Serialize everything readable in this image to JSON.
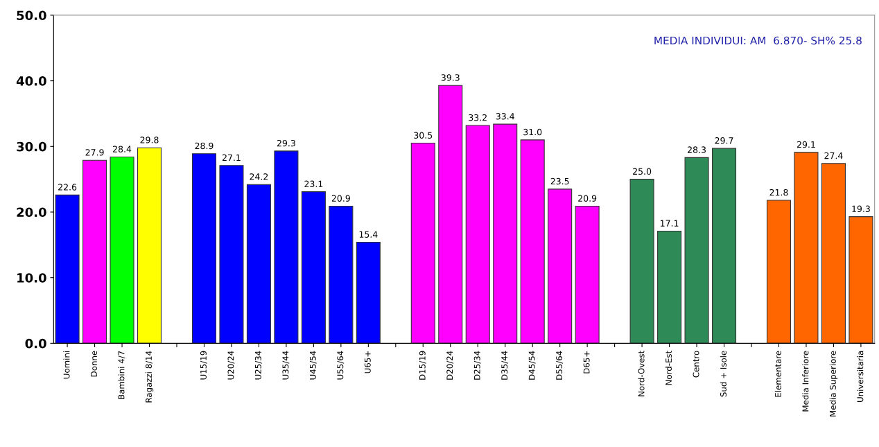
{
  "chart_data": {
    "type": "bar",
    "categories": [
      "Uomini",
      "Donne",
      "Bambini 4/7",
      "Ragazzi 8/14",
      null,
      "U15/19",
      "U20/24",
      "U25/34",
      "U35/44",
      "U45/54",
      "U55/64",
      "U65+",
      null,
      "D15/19",
      "D20/24",
      "D25/34",
      "D35/44",
      "D45/54",
      "D55/64",
      "D65+",
      null,
      "Nord-Ovest",
      "Nord-Est",
      "Centro",
      "Sud + Isole",
      null,
      "Elementare",
      "Media Inferiore",
      "Media Superiore",
      "Universitaria"
    ],
    "values": [
      22.6,
      27.9,
      28.4,
      29.8,
      null,
      28.9,
      27.1,
      24.2,
      29.3,
      23.1,
      20.9,
      15.4,
      null,
      30.5,
      39.3,
      33.2,
      33.4,
      31.0,
      23.5,
      20.9,
      null,
      25.0,
      17.1,
      28.3,
      29.7,
      null,
      21.8,
      29.1,
      27.4,
      19.3
    ],
    "colors": [
      "#0000ff",
      "#ff00ff",
      "#00ff00",
      "#ffff00",
      null,
      "#0000ff",
      "#0000ff",
      "#0000ff",
      "#0000ff",
      "#0000ff",
      "#0000ff",
      "#0000ff",
      null,
      "#ff00ff",
      "#ff00ff",
      "#ff00ff",
      "#ff00ff",
      "#ff00ff",
      "#ff00ff",
      "#ff00ff",
      null,
      "#2e8b57",
      "#2e8b57",
      "#2e8b57",
      "#2e8b57",
      null,
      "#ff6600",
      "#ff6600",
      "#ff6600",
      "#ff6600"
    ],
    "ylim": [
      0,
      50
    ],
    "yticks": [
      {
        "value": 0,
        "label": "0.0"
      },
      {
        "value": 10,
        "label": "10.0"
      },
      {
        "value": 20,
        "label": "20.0"
      },
      {
        "value": 30,
        "label": "30.0"
      },
      {
        "value": 40,
        "label": "40.0"
      },
      {
        "value": 50,
        "label": "50.0"
      }
    ],
    "value_labels": [
      "22.6",
      "27.9",
      "28.4",
      "29.8",
      null,
      "28.9",
      "27.1",
      "24.2",
      "29.3",
      "23.1",
      "20.9",
      "15.4",
      null,
      "30.5",
      "39.3",
      "33.2",
      "33.4",
      "31.0",
      "23.5",
      "20.9",
      null,
      "25.0",
      "17.1",
      "28.3",
      "29.7",
      null,
      "21.8",
      "29.1",
      "27.4",
      "19.3"
    ],
    "grid": false,
    "legend": false,
    "annotations": [
      "MEDIA INDIVIDUI: AM  6.870- SH% 25.8"
    ]
  }
}
